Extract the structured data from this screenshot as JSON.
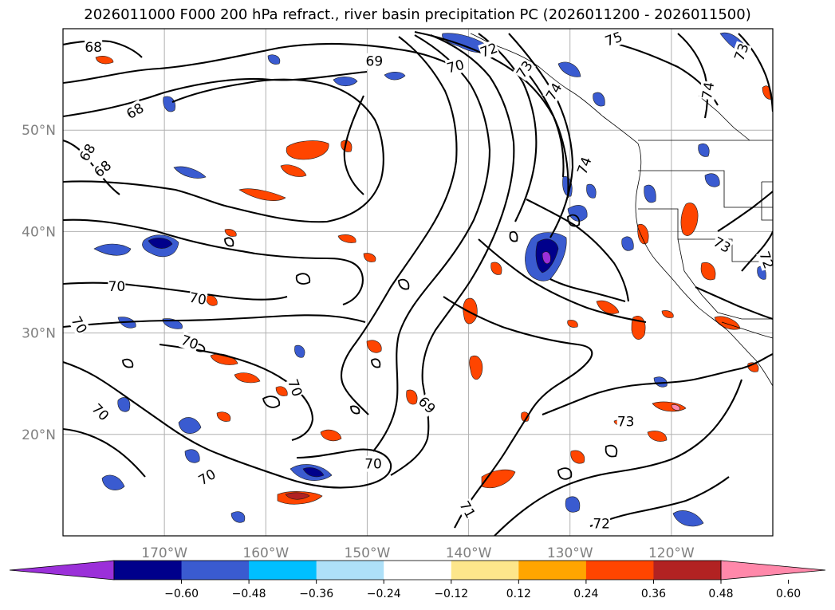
{
  "title": "2026011000 F000 200 hPa refract., river basin precipitation PC (2026011200 - 2026011500)",
  "map": {
    "lon_range": [
      -180,
      -110
    ],
    "lat_range": [
      10,
      60
    ],
    "lon_ticks": [
      {
        "value": -170,
        "label": "170°W"
      },
      {
        "value": -160,
        "label": "160°W"
      },
      {
        "value": -150,
        "label": "150°W"
      },
      {
        "value": -140,
        "label": "140°W"
      },
      {
        "value": -130,
        "label": "130°W"
      },
      {
        "value": -120,
        "label": "120°W"
      }
    ],
    "lat_ticks": [
      {
        "value": 20,
        "label": "20°N"
      },
      {
        "value": 30,
        "label": "30°N"
      },
      {
        "value": 40,
        "label": "40°N"
      },
      {
        "value": 50,
        "label": "50°N"
      }
    ],
    "contour_labels": [
      {
        "lon": -177,
        "lat": 58.2,
        "text": "68",
        "rot": 0
      },
      {
        "lon": -172.9,
        "lat": 51.9,
        "text": "68",
        "rot": 30
      },
      {
        "lon": -177.6,
        "lat": 47.8,
        "text": "68",
        "rot": 60
      },
      {
        "lon": -176.1,
        "lat": 46.2,
        "text": "68",
        "rot": 40
      },
      {
        "lon": -149.3,
        "lat": 56.8,
        "text": "69",
        "rot": 0
      },
      {
        "lon": -141.3,
        "lat": 56.3,
        "text": "70",
        "rot": 15
      },
      {
        "lon": -138,
        "lat": 57.9,
        "text": "72",
        "rot": 20
      },
      {
        "lon": -134.5,
        "lat": 56,
        "text": "73",
        "rot": 55
      },
      {
        "lon": -131.6,
        "lat": 53.8,
        "text": "74",
        "rot": 60
      },
      {
        "lon": -125.7,
        "lat": 59,
        "text": "75",
        "rot": 20
      },
      {
        "lon": -113.1,
        "lat": 57.7,
        "text": "73",
        "rot": 70
      },
      {
        "lon": -116.4,
        "lat": 53.9,
        "text": "74",
        "rot": 80
      },
      {
        "lon": -128.6,
        "lat": 46.5,
        "text": "74",
        "rot": 70
      },
      {
        "lon": -174.7,
        "lat": 34.6,
        "text": "70",
        "rot": 0
      },
      {
        "lon": -166.7,
        "lat": 33.4,
        "text": "70",
        "rot": -10
      },
      {
        "lon": -178.4,
        "lat": 30.8,
        "text": "70",
        "rot": -60
      },
      {
        "lon": -167.5,
        "lat": 29.1,
        "text": "70",
        "rot": -20
      },
      {
        "lon": -157.1,
        "lat": 24.6,
        "text": "70",
        "rot": -70
      },
      {
        "lon": -176.3,
        "lat": 22.2,
        "text": "70",
        "rot": -45
      },
      {
        "lon": -165.8,
        "lat": 15.8,
        "text": "70",
        "rot": 30
      },
      {
        "lon": -149.4,
        "lat": 17.1,
        "text": "70",
        "rot": 0
      },
      {
        "lon": -144.1,
        "lat": 22.9,
        "text": "69",
        "rot": -45
      },
      {
        "lon": -140.1,
        "lat": 12.6,
        "text": "71",
        "rot": -60
      },
      {
        "lon": -124.5,
        "lat": 21.3,
        "text": "73",
        "rot": 0
      },
      {
        "lon": -126.9,
        "lat": 11.2,
        "text": "72",
        "rot": 0
      },
      {
        "lon": -115,
        "lat": 38.7,
        "text": "73",
        "rot": -30
      },
      {
        "lon": -110.6,
        "lat": 37.2,
        "text": "72",
        "rot": -70
      }
    ]
  },
  "colorbar": {
    "colors": [
      "#9b30d9",
      "#00008b",
      "#3a5bd0",
      "#00bfff",
      "#aee0f8",
      "#ffffff",
      "#fde68b",
      "#ffa500",
      "#ff4500",
      "#b22222",
      "#ff88aa"
    ],
    "tick_labels": [
      "−0.60",
      "−0.48",
      "−0.36",
      "−0.24",
      "−0.12",
      "0.12",
      "0.24",
      "0.36",
      "0.48",
      "0.60"
    ]
  }
}
